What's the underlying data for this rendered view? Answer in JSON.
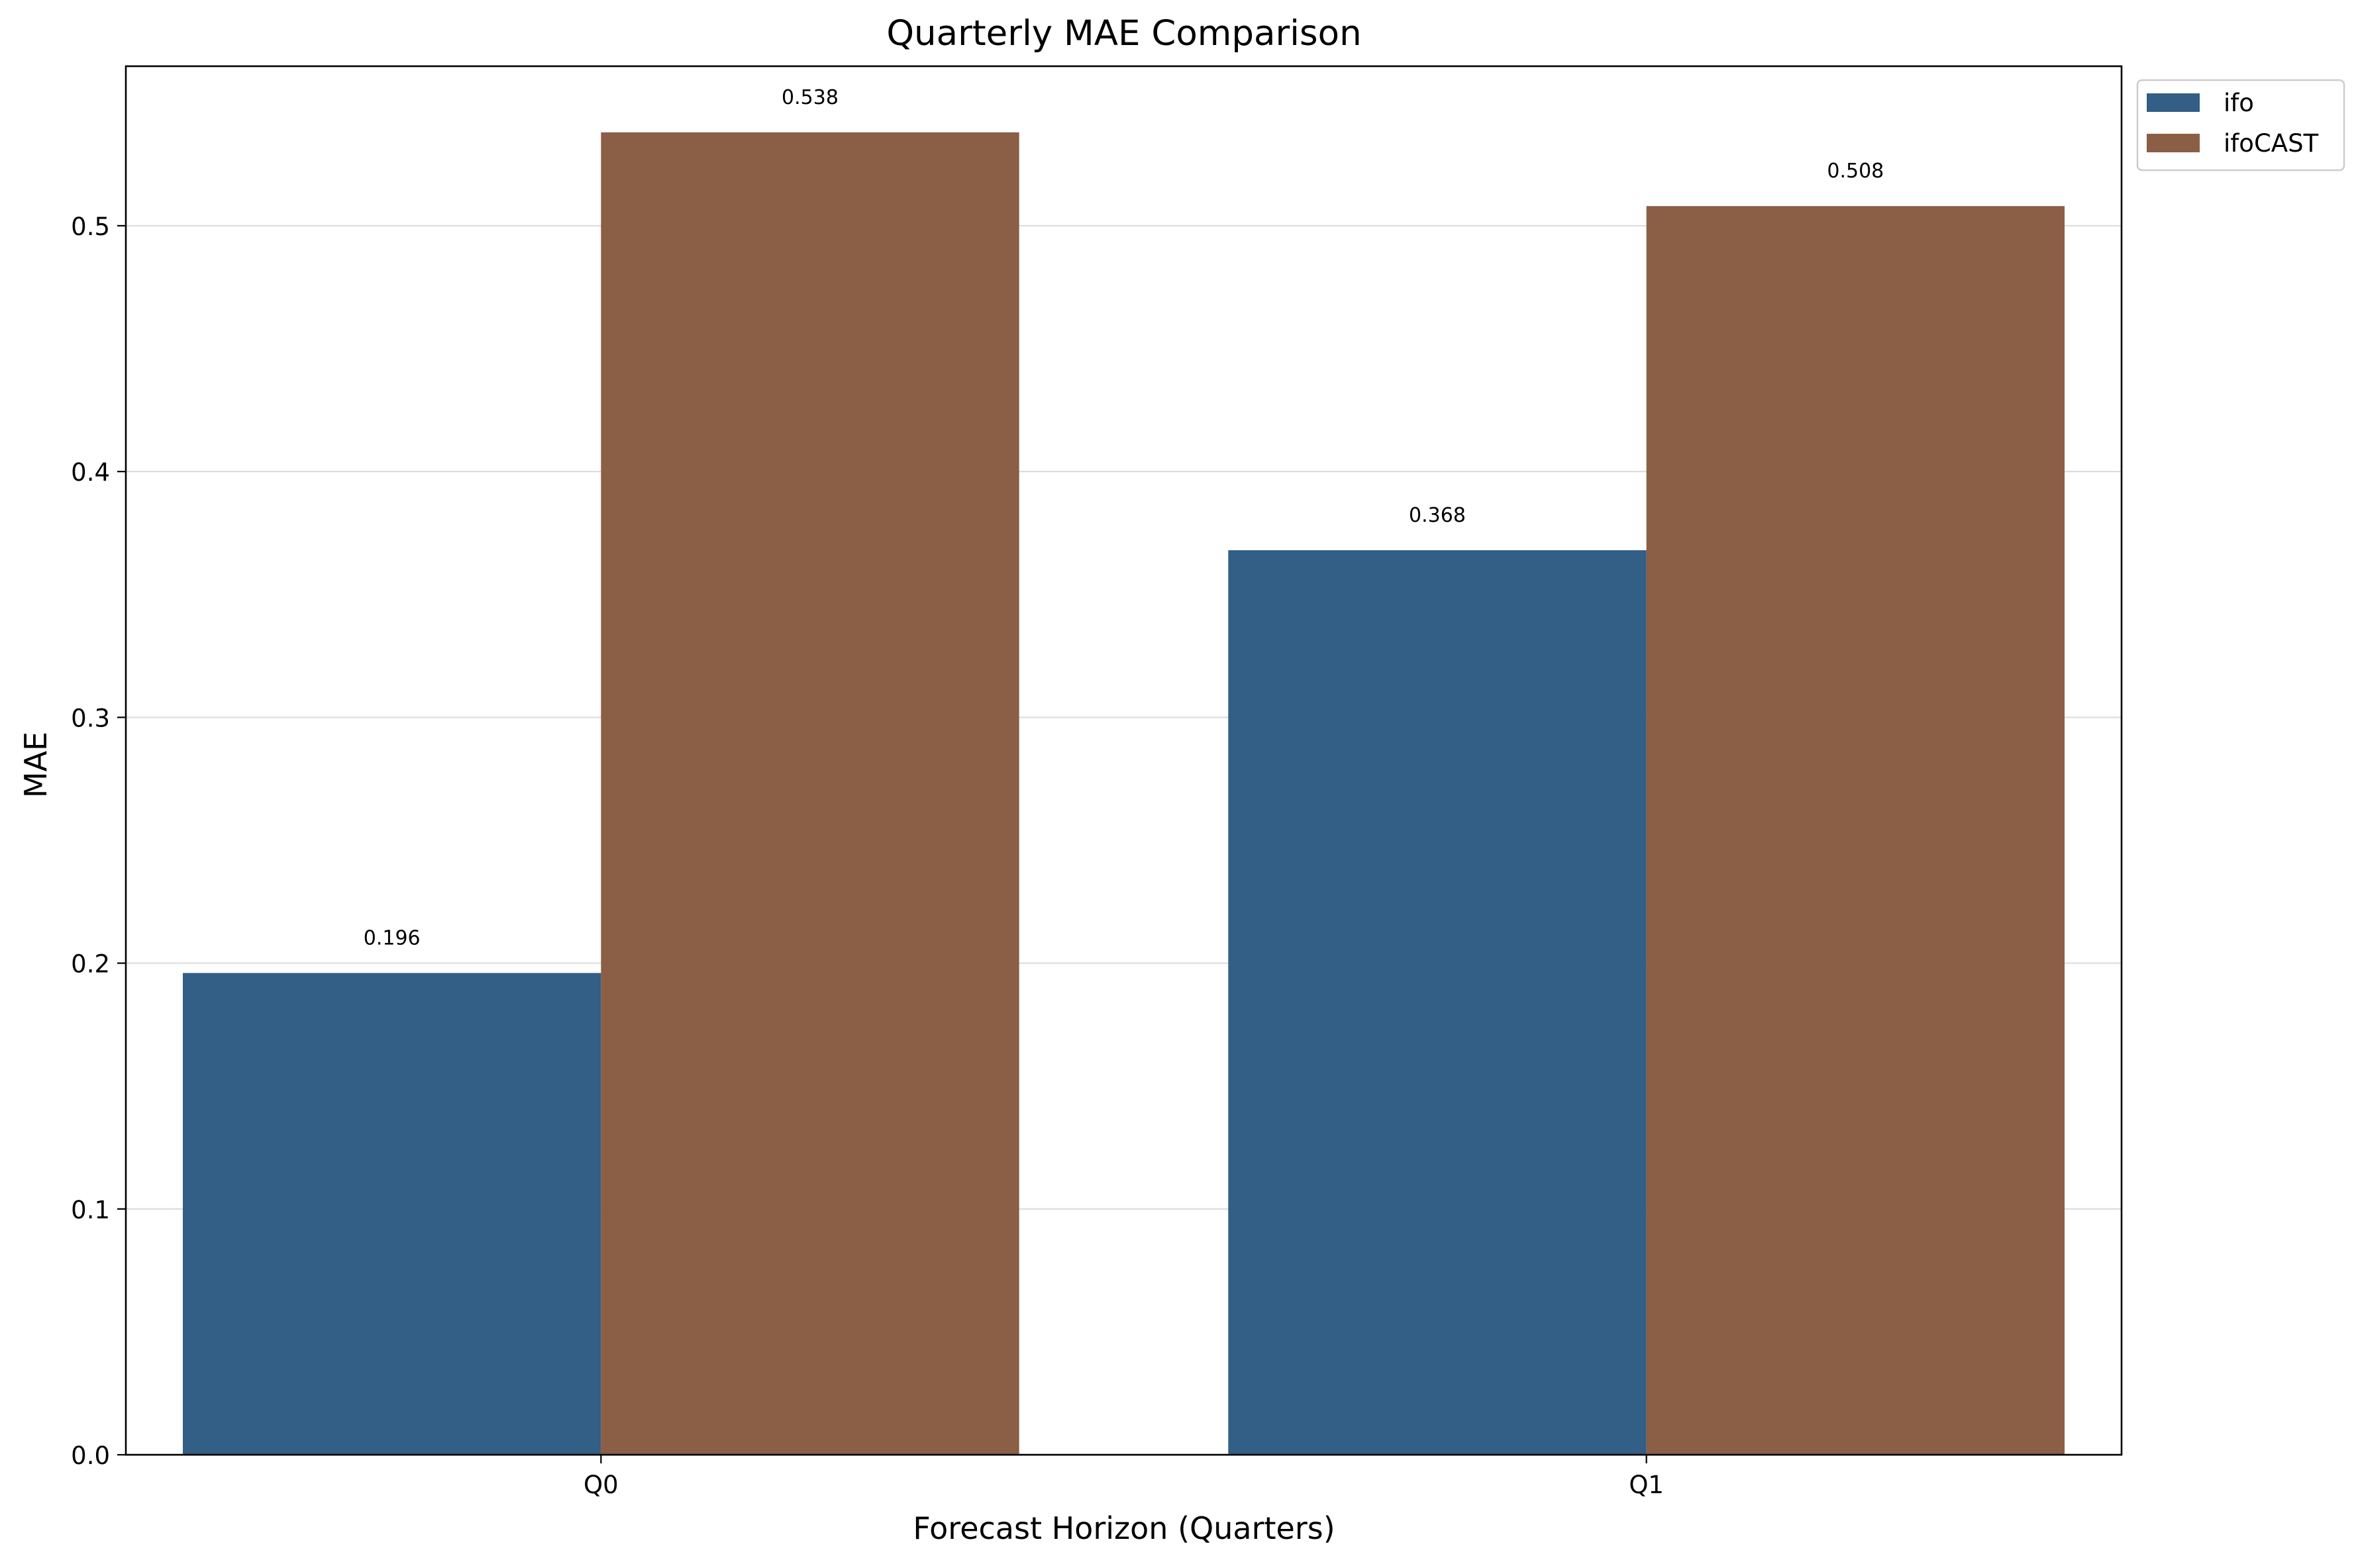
{
  "chart_data": {
    "type": "bar",
    "title": "Quarterly MAE Comparison",
    "xlabel": "Forecast Horizon (Quarters)",
    "ylabel": "MAE",
    "categories": [
      "Q0",
      "Q1"
    ],
    "series": [
      {
        "name": "ifo",
        "values": [
          0.196,
          0.368
        ],
        "labels": [
          "0.196",
          "0.368"
        ],
        "color": "#335e85"
      },
      {
        "name": "ifoCAST",
        "values": [
          0.538,
          0.508
        ],
        "labels": [
          "0.538",
          "0.508"
        ],
        "color": "#8b5e46"
      }
    ],
    "ylim": [
      0,
      0.5649
    ],
    "yticks": [
      0.0,
      0.1,
      0.2,
      0.3,
      0.4,
      0.5
    ],
    "ytick_labels": [
      "0.0",
      "0.1",
      "0.2",
      "0.3",
      "0.4",
      "0.5"
    ],
    "grid": "y",
    "legend_position": "outside-top-right"
  }
}
